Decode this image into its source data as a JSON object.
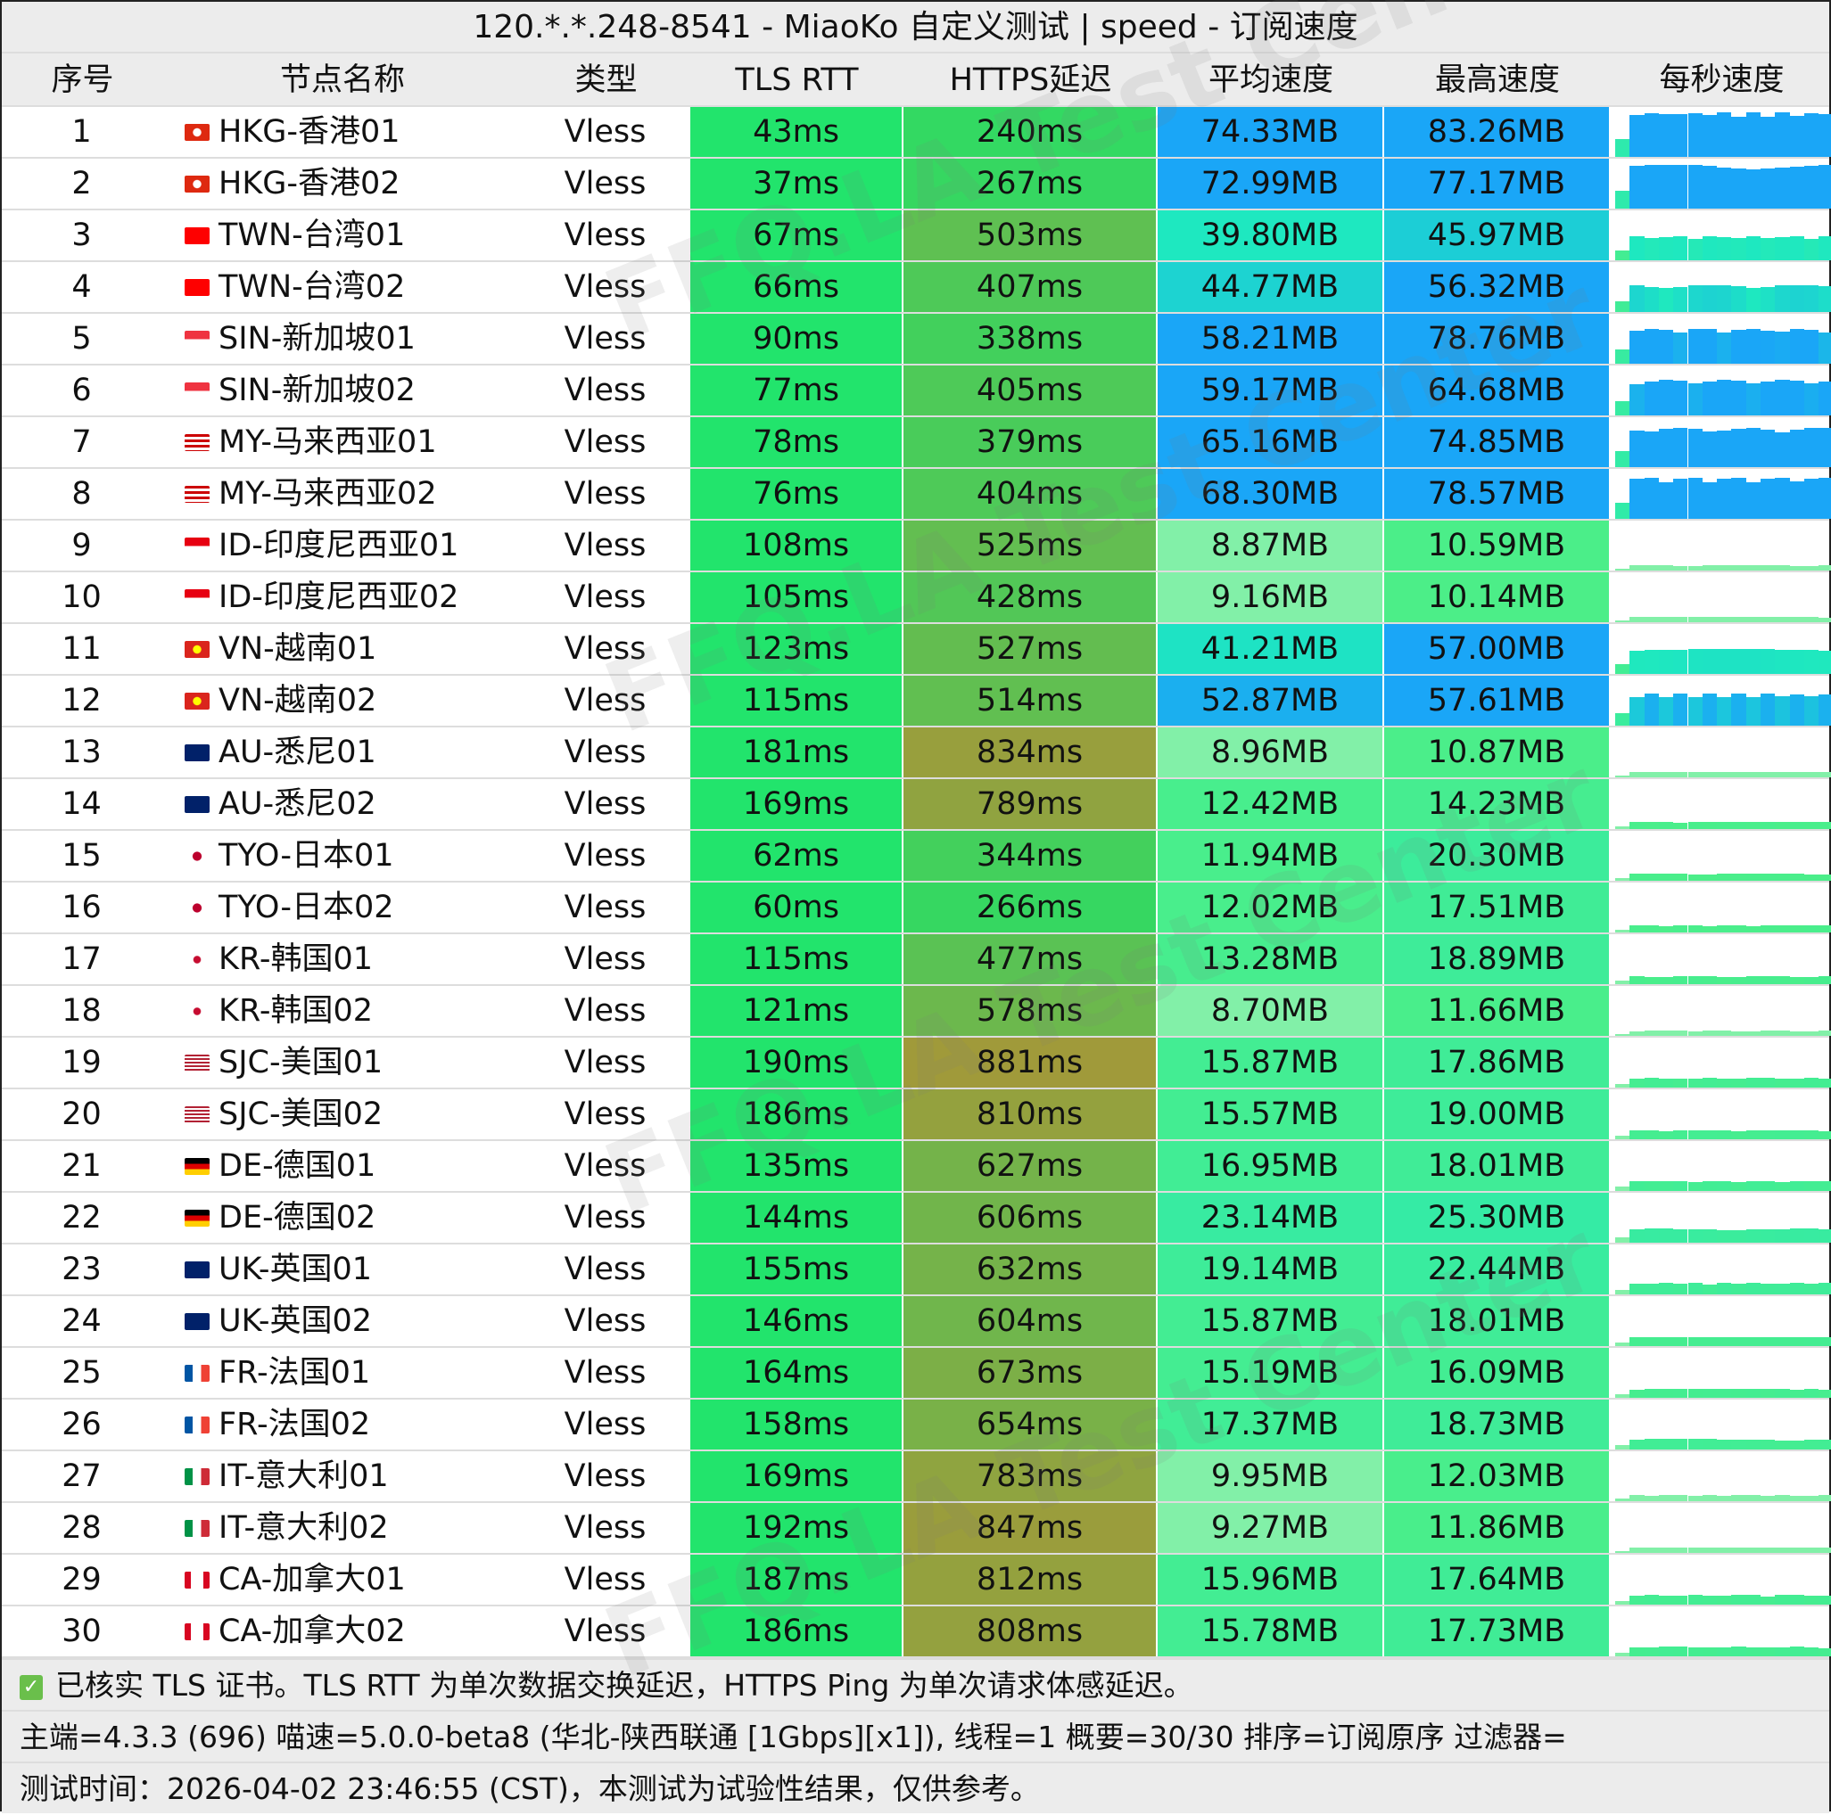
{
  "title": "120.*.*.248-8541 - MiaoKo 自定义测试 | speed - 订阅速度",
  "headers": [
    "序号",
    "节点名称",
    "类型",
    "TLS RTT",
    "HTTPS延迟",
    "平均速度",
    "最高速度",
    "每秒速度"
  ],
  "watermark": "FFQ.LA Test Center",
  "rows": [
    {
      "no": "1",
      "flag": "hk",
      "name": "HKG-香港01",
      "type": "Vless",
      "tls": "43ms",
      "https": "240ms",
      "avg": "74.33MB",
      "max": "83.26MB"
    },
    {
      "no": "2",
      "flag": "hk",
      "name": "HKG-香港02",
      "type": "Vless",
      "tls": "37ms",
      "https": "267ms",
      "avg": "72.99MB",
      "max": "77.17MB"
    },
    {
      "no": "3",
      "flag": "tw",
      "name": "TWN-台湾01",
      "type": "Vless",
      "tls": "67ms",
      "https": "503ms",
      "avg": "39.80MB",
      "max": "45.97MB"
    },
    {
      "no": "4",
      "flag": "tw",
      "name": "TWN-台湾02",
      "type": "Vless",
      "tls": "66ms",
      "https": "407ms",
      "avg": "44.77MB",
      "max": "56.32MB"
    },
    {
      "no": "5",
      "flag": "sg",
      "name": "SIN-新加坡01",
      "type": "Vless",
      "tls": "90ms",
      "https": "338ms",
      "avg": "58.21MB",
      "max": "78.76MB"
    },
    {
      "no": "6",
      "flag": "sg",
      "name": "SIN-新加坡02",
      "type": "Vless",
      "tls": "77ms",
      "https": "405ms",
      "avg": "59.17MB",
      "max": "64.68MB"
    },
    {
      "no": "7",
      "flag": "my",
      "name": "MY-马来西亚01",
      "type": "Vless",
      "tls": "78ms",
      "https": "379ms",
      "avg": "65.16MB",
      "max": "74.85MB"
    },
    {
      "no": "8",
      "flag": "my",
      "name": "MY-马来西亚02",
      "type": "Vless",
      "tls": "76ms",
      "https": "404ms",
      "avg": "68.30MB",
      "max": "78.57MB"
    },
    {
      "no": "9",
      "flag": "id",
      "name": "ID-印度尼西亚01",
      "type": "Vless",
      "tls": "108ms",
      "https": "525ms",
      "avg": "8.87MB",
      "max": "10.59MB"
    },
    {
      "no": "10",
      "flag": "id",
      "name": "ID-印度尼西亚02",
      "type": "Vless",
      "tls": "105ms",
      "https": "428ms",
      "avg": "9.16MB",
      "max": "10.14MB"
    },
    {
      "no": "11",
      "flag": "vn",
      "name": "VN-越南01",
      "type": "Vless",
      "tls": "123ms",
      "https": "527ms",
      "avg": "41.21MB",
      "max": "57.00MB"
    },
    {
      "no": "12",
      "flag": "vn",
      "name": "VN-越南02",
      "type": "Vless",
      "tls": "115ms",
      "https": "514ms",
      "avg": "52.87MB",
      "max": "57.61MB"
    },
    {
      "no": "13",
      "flag": "au",
      "name": "AU-悉尼01",
      "type": "Vless",
      "tls": "181ms",
      "https": "834ms",
      "avg": "8.96MB",
      "max": "10.87MB"
    },
    {
      "no": "14",
      "flag": "au",
      "name": "AU-悉尼02",
      "type": "Vless",
      "tls": "169ms",
      "https": "789ms",
      "avg": "12.42MB",
      "max": "14.23MB"
    },
    {
      "no": "15",
      "flag": "jp",
      "name": "TYO-日本01",
      "type": "Vless",
      "tls": "62ms",
      "https": "344ms",
      "avg": "11.94MB",
      "max": "20.30MB"
    },
    {
      "no": "16",
      "flag": "jp",
      "name": "TYO-日本02",
      "type": "Vless",
      "tls": "60ms",
      "https": "266ms",
      "avg": "12.02MB",
      "max": "17.51MB"
    },
    {
      "no": "17",
      "flag": "kr",
      "name": "KR-韩国01",
      "type": "Vless",
      "tls": "115ms",
      "https": "477ms",
      "avg": "13.28MB",
      "max": "18.89MB"
    },
    {
      "no": "18",
      "flag": "kr",
      "name": "KR-韩国02",
      "type": "Vless",
      "tls": "121ms",
      "https": "578ms",
      "avg": "8.70MB",
      "max": "11.66MB"
    },
    {
      "no": "19",
      "flag": "us",
      "name": "SJC-美国01",
      "type": "Vless",
      "tls": "190ms",
      "https": "881ms",
      "avg": "15.87MB",
      "max": "17.86MB"
    },
    {
      "no": "20",
      "flag": "us",
      "name": "SJC-美国02",
      "type": "Vless",
      "tls": "186ms",
      "https": "810ms",
      "avg": "15.57MB",
      "max": "19.00MB"
    },
    {
      "no": "21",
      "flag": "de",
      "name": "DE-德国01",
      "type": "Vless",
      "tls": "135ms",
      "https": "627ms",
      "avg": "16.95MB",
      "max": "18.01MB"
    },
    {
      "no": "22",
      "flag": "de",
      "name": "DE-德国02",
      "type": "Vless",
      "tls": "144ms",
      "https": "606ms",
      "avg": "23.14MB",
      "max": "25.30MB"
    },
    {
      "no": "23",
      "flag": "uk",
      "name": "UK-英国01",
      "type": "Vless",
      "tls": "155ms",
      "https": "632ms",
      "avg": "19.14MB",
      "max": "22.44MB"
    },
    {
      "no": "24",
      "flag": "uk",
      "name": "UK-英国02",
      "type": "Vless",
      "tls": "146ms",
      "https": "604ms",
      "avg": "15.87MB",
      "max": "18.01MB"
    },
    {
      "no": "25",
      "flag": "fr",
      "name": "FR-法国01",
      "type": "Vless",
      "tls": "164ms",
      "https": "673ms",
      "avg": "15.19MB",
      "max": "16.09MB"
    },
    {
      "no": "26",
      "flag": "fr",
      "name": "FR-法国02",
      "type": "Vless",
      "tls": "158ms",
      "https": "654ms",
      "avg": "17.37MB",
      "max": "18.73MB"
    },
    {
      "no": "27",
      "flag": "it",
      "name": "IT-意大利01",
      "type": "Vless",
      "tls": "169ms",
      "https": "783ms",
      "avg": "9.95MB",
      "max": "12.03MB"
    },
    {
      "no": "28",
      "flag": "it",
      "name": "IT-意大利02",
      "type": "Vless",
      "tls": "192ms",
      "https": "847ms",
      "avg": "9.27MB",
      "max": "11.86MB"
    },
    {
      "no": "29",
      "flag": "ca",
      "name": "CA-加拿大01",
      "type": "Vless",
      "tls": "187ms",
      "https": "812ms",
      "avg": "15.96MB",
      "max": "17.64MB"
    },
    {
      "no": "30",
      "flag": "ca",
      "name": "CA-加拿大02",
      "type": "Vless",
      "tls": "186ms",
      "https": "808ms",
      "avg": "15.78MB",
      "max": "17.73MB"
    }
  ],
  "footer": {
    "note": "已核实 TLS 证书。TLS RTT 为单次数据交换延迟，HTTPS Ping 为单次请求体感延迟。",
    "info": "主端=4.3.3 (696) 喵速=5.0.0-beta8 (华北-陕西联通 [1Gbps][x1]), 线程=1 概要=30/30 排序=订阅原序 过滤器=",
    "time": "测试时间：2026-04-02 23:46:55 (CST)，本测试为试验性结果，仅供参考。"
  },
  "colors": {
    "tls": "#22e46c",
    "latency_low": "#33d962",
    "latency_high": "#a09a3a",
    "speed_low": "#82f0a8",
    "speed_mid": "#1ee8c0",
    "speed_high": "#1aa6f7",
    "header_bg": "#ececec"
  }
}
